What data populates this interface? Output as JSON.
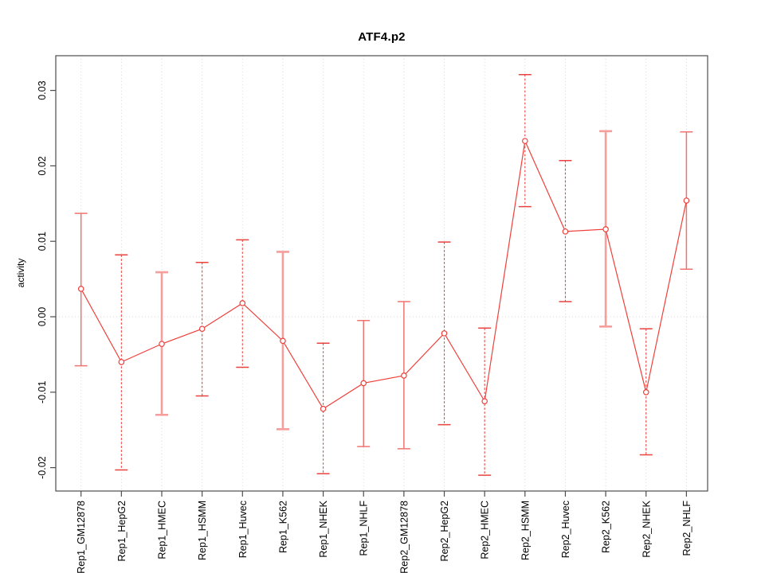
{
  "chart_data": {
    "type": "line",
    "title": "ATF4.p2",
    "xlabel": "",
    "ylabel": "activity",
    "ylim": [
      -0.0231,
      0.0346
    ],
    "yticks": [
      0.03,
      0.02,
      0.01,
      0.0,
      -0.01,
      -0.02
    ],
    "ytick_labels": [
      "0.03",
      "0.02",
      "0.01",
      "0.00",
      "-0.01",
      "-0.02"
    ],
    "grid": "vertical dotted gridline at each category; horizontal dotted line at y=0; legend none",
    "categories": [
      "Rep1_GM12878",
      "Rep1_HepG2",
      "Rep1_HMEC",
      "Rep1_HSMM",
      "Rep1_Huvec",
      "Rep1_K562",
      "Rep1_NHEK",
      "Rep1_NHLF",
      "Rep2_GM12878",
      "Rep2_HepG2",
      "Rep2_HMEC",
      "Rep2_HSMM",
      "Rep2_Huvec",
      "Rep2_K562",
      "Rep2_NHEK",
      "Rep2_NHLF"
    ],
    "series": [
      {
        "name": "activity",
        "marker": "open-circle",
        "values": [
          0.0037,
          -0.006,
          -0.0036,
          -0.0016,
          0.0018,
          -0.0032,
          -0.0122,
          -0.0088,
          -0.0078,
          -0.0022,
          -0.0112,
          0.0233,
          0.0113,
          0.0116,
          -0.01,
          0.0154
        ],
        "error_high": [
          0.0137,
          0.0082,
          0.0059,
          0.0072,
          0.0102,
          0.0086,
          -0.0035,
          -0.0005,
          0.002,
          0.0099,
          -0.0015,
          0.0321,
          0.0207,
          0.0246,
          -0.0016,
          0.0245
        ],
        "error_low": [
          -0.0065,
          -0.0203,
          -0.013,
          -0.0105,
          -0.0067,
          -0.0149,
          -0.0208,
          -0.0172,
          -0.0175,
          -0.0143,
          -0.021,
          0.0146,
          0.002,
          -0.0013,
          -0.0183,
          0.0063
        ],
        "error_bar_styles": [
          "solid-thin",
          "dashed",
          "solid-thick",
          "dashed",
          "dashed",
          "solid-thick",
          "dashed",
          "solid-thin",
          "solid-thin",
          "dashed",
          "dashed",
          "dashed",
          "dashed",
          "solid-thick",
          "dashed",
          "solid-thin"
        ]
      }
    ],
    "colors": {
      "series": "#ef403b",
      "point_fill": "#ffffff",
      "error_dashed": "#e8433f",
      "error_solid_thin": "#f0736f",
      "error_solid_thick": "#f59e9b",
      "grid": "#d9d9d9",
      "zero_line": "#d9d9d9",
      "axis": "#4d4d4d",
      "background": "#ffffff"
    }
  }
}
